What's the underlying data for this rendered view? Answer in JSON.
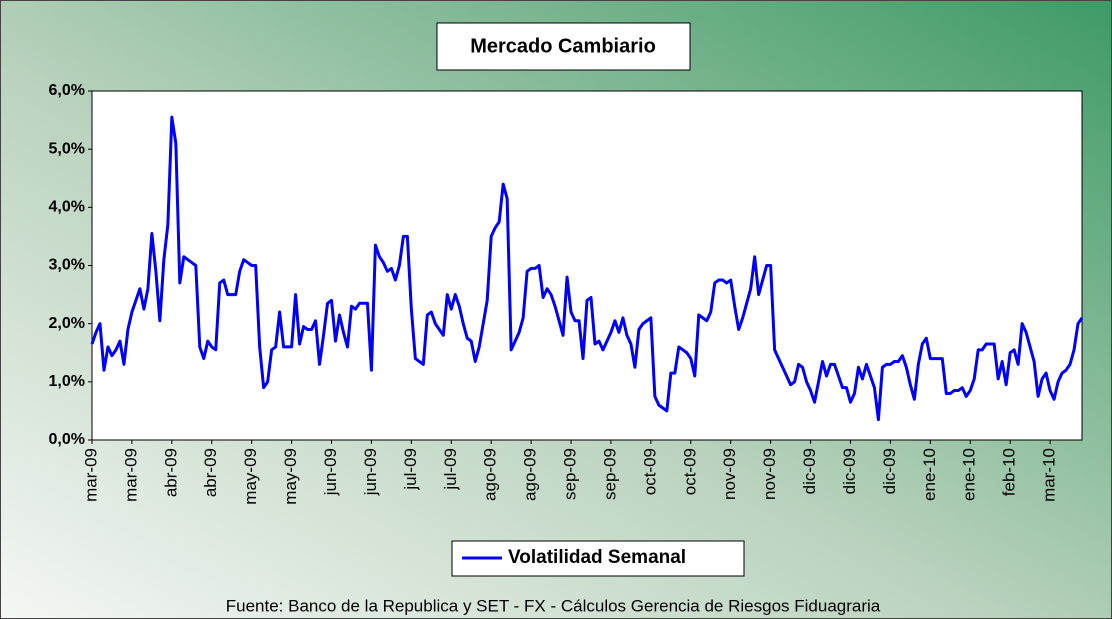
{
  "chart_data": {
    "type": "line",
    "title": "Mercado Cambiario",
    "footer": "Fuente: Banco de la Republica y SET - FX - Cálculos Gerencia de Riesgos Fiduagraria",
    "categories": [
      "mar-09",
      null,
      null,
      null,
      null,
      null,
      null,
      null,
      null,
      null,
      "mar-09",
      null,
      null,
      null,
      null,
      null,
      null,
      null,
      null,
      null,
      "abr-09",
      null,
      null,
      null,
      null,
      null,
      null,
      null,
      null,
      null,
      "abr-09",
      null,
      null,
      null,
      null,
      null,
      null,
      null,
      null,
      null,
      "may-09",
      null,
      null,
      null,
      null,
      null,
      null,
      null,
      null,
      null,
      "may-09",
      null,
      null,
      null,
      null,
      null,
      null,
      null,
      null,
      null,
      "jun-09",
      null,
      null,
      null,
      null,
      null,
      null,
      null,
      null,
      null,
      "jun-09",
      null,
      null,
      null,
      null,
      null,
      null,
      null,
      null,
      null,
      "jul-09",
      null,
      null,
      null,
      null,
      null,
      null,
      null,
      null,
      null,
      "jul-09",
      null,
      null,
      null,
      null,
      null,
      null,
      null,
      null,
      null,
      "ago-09",
      null,
      null,
      null,
      null,
      null,
      null,
      null,
      null,
      null,
      "ago-09",
      null,
      null,
      null,
      null,
      null,
      null,
      null,
      null,
      null,
      "sep-09",
      null,
      null,
      null,
      null,
      null,
      null,
      null,
      null,
      null,
      "sep-09",
      null,
      null,
      null,
      null,
      null,
      null,
      null,
      null,
      null,
      "oct-09",
      null,
      null,
      null,
      null,
      null,
      null,
      null,
      null,
      null,
      "oct-09",
      null,
      null,
      null,
      null,
      null,
      null,
      null,
      null,
      null,
      "nov-09",
      null,
      null,
      null,
      null,
      null,
      null,
      null,
      null,
      null,
      "nov-09",
      null,
      null,
      null,
      null,
      null,
      null,
      null,
      null,
      null,
      "dic-09",
      null,
      null,
      null,
      null,
      null,
      null,
      null,
      null,
      null,
      "dic-09",
      null,
      null,
      null,
      null,
      null,
      null,
      null,
      null,
      null,
      "dic-09",
      null,
      null,
      null,
      null,
      null,
      null,
      null,
      null,
      null,
      "ene-10",
      null,
      null,
      null,
      null,
      null,
      null,
      null,
      null,
      null,
      "ene-10",
      null,
      null,
      null,
      null,
      null,
      null,
      null,
      null,
      null,
      "feb-10",
      null,
      null,
      null,
      null,
      null,
      null,
      null,
      null,
      null,
      "mar-10",
      null,
      null,
      null,
      null,
      null,
      null,
      null,
      null
    ],
    "series": [
      {
        "name": "Volatilidad Semanal",
        "color": "#0000ff",
        "values": [
          1.65,
          1.85,
          2.0,
          1.2,
          1.6,
          1.45,
          1.55,
          1.7,
          1.3,
          1.9,
          2.2,
          2.4,
          2.6,
          2.25,
          2.6,
          3.55,
          2.9,
          2.05,
          3.1,
          3.7,
          5.55,
          5.1,
          2.7,
          3.15,
          3.1,
          3.05,
          3.0,
          1.6,
          1.4,
          1.7,
          1.6,
          1.55,
          2.7,
          2.75,
          2.5,
          2.5,
          2.5,
          2.9,
          3.1,
          3.05,
          3.0,
          3.0,
          1.6,
          0.9,
          1.0,
          1.55,
          1.6,
          2.2,
          1.6,
          1.6,
          1.6,
          2.5,
          1.65,
          1.95,
          1.9,
          1.9,
          2.05,
          1.3,
          1.8,
          2.35,
          2.4,
          1.7,
          2.15,
          1.85,
          1.6,
          2.3,
          2.25,
          2.35,
          2.35,
          2.35,
          1.2,
          3.35,
          3.15,
          3.05,
          2.9,
          2.95,
          2.75,
          3.0,
          3.5,
          3.5,
          2.25,
          1.4,
          1.35,
          1.3,
          2.15,
          2.2,
          2.0,
          1.9,
          1.8,
          2.5,
          2.25,
          2.5,
          2.3,
          2.0,
          1.75,
          1.7,
          1.35,
          1.6,
          2.0,
          2.4,
          3.5,
          3.65,
          3.75,
          4.4,
          4.15,
          1.55,
          1.7,
          1.85,
          2.1,
          2.9,
          2.95,
          2.95,
          3.0,
          2.45,
          2.6,
          2.5,
          2.3,
          2.05,
          1.8,
          2.8,
          2.2,
          2.05,
          2.05,
          1.4,
          2.4,
          2.45,
          1.65,
          1.7,
          1.55,
          1.7,
          1.85,
          2.05,
          1.85,
          2.1,
          1.8,
          1.65,
          1.25,
          1.9,
          2.0,
          2.05,
          2.1,
          0.75,
          0.6,
          0.55,
          0.5,
          1.15,
          1.15,
          1.6,
          1.55,
          1.5,
          1.4,
          1.1,
          2.15,
          2.1,
          2.05,
          2.2,
          2.7,
          2.75,
          2.75,
          2.7,
          2.75,
          2.3,
          1.9,
          2.1,
          2.35,
          2.6,
          3.15,
          2.5,
          2.75,
          3.0,
          3.0,
          1.55,
          1.4,
          1.25,
          1.1,
          0.95,
          1.0,
          1.3,
          1.25,
          1.0,
          0.85,
          0.65,
          1.0,
          1.35,
          1.1,
          1.3,
          1.3,
          1.1,
          0.9,
          0.9,
          0.65,
          0.8,
          1.25,
          1.05,
          1.3,
          1.1,
          0.9,
          0.35,
          1.25,
          1.3,
          1.3,
          1.35,
          1.35,
          1.45,
          1.25,
          0.95,
          0.7,
          1.3,
          1.65,
          1.75,
          1.4,
          1.4,
          1.4,
          1.4,
          0.8,
          0.8,
          0.85,
          0.85,
          0.9,
          0.75,
          0.85,
          1.05,
          1.55,
          1.55,
          1.65,
          1.65,
          1.65,
          1.05,
          1.35,
          0.95,
          1.5,
          1.55,
          1.3,
          2.0,
          1.85,
          1.6,
          1.35,
          0.75,
          1.05,
          1.15,
          0.85,
          0.7,
          1.0,
          1.15,
          1.2,
          1.3,
          1.55,
          2.0,
          2.1
        ]
      }
    ],
    "ylim": [
      0,
      6
    ],
    "yticks": [
      {
        "value": 0,
        "label": "0,0%"
      },
      {
        "value": 1,
        "label": "1,0%"
      },
      {
        "value": 2,
        "label": "2,0%"
      },
      {
        "value": 3,
        "label": "3,0%"
      },
      {
        "value": 4,
        "label": "4,0%"
      },
      {
        "value": 5,
        "label": "5,0%"
      },
      {
        "value": 6,
        "label": "6,0%"
      }
    ],
    "grid": false,
    "legend": "bottom"
  }
}
